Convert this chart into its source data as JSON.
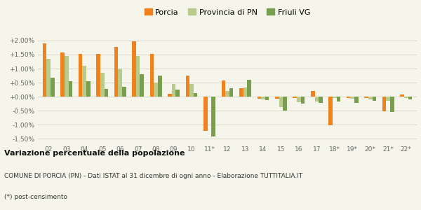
{
  "categories": [
    "02",
    "03",
    "04",
    "05",
    "06",
    "07",
    "08",
    "09",
    "10",
    "11*",
    "12",
    "13",
    "14",
    "15",
    "16",
    "17",
    "18*",
    "19*",
    "20*",
    "21*",
    "22*"
  ],
  "porcia": [
    1.9,
    1.58,
    1.53,
    1.52,
    1.77,
    1.97,
    1.53,
    0.1,
    0.75,
    -1.22,
    0.58,
    0.3,
    -0.07,
    -0.07,
    -0.06,
    0.2,
    -1.02,
    -0.04,
    -0.04,
    -0.52,
    0.08
  ],
  "provincia_pn": [
    1.36,
    1.44,
    1.1,
    0.85,
    1.0,
    1.46,
    0.5,
    0.45,
    0.45,
    -0.03,
    0.2,
    0.33,
    -0.09,
    -0.38,
    -0.2,
    -0.18,
    -0.05,
    -0.07,
    -0.09,
    -0.15,
    -0.05
  ],
  "friuli_vg": [
    0.68,
    0.56,
    0.54,
    0.28,
    0.35,
    0.8,
    0.74,
    0.26,
    0.13,
    -1.42,
    0.3,
    0.59,
    -0.12,
    -0.5,
    -0.25,
    -0.22,
    -0.18,
    -0.22,
    -0.15,
    -0.56,
    -0.1
  ],
  "color_porcia": "#f0821e",
  "color_provincia": "#b8cb8a",
  "color_friuli": "#7a9e50",
  "ylim": [
    -1.65,
    2.25
  ],
  "yticks": [
    -1.5,
    -1.0,
    -0.5,
    0.0,
    0.5,
    1.0,
    1.5,
    2.0
  ],
  "title_bold": "Variazione percentuale della popolazione",
  "subtitle": "COMUNE DI PORCIA (PN) - Dati ISTAT al 31 dicembre di ogni anno - Elaborazione TUTTITALIA.IT",
  "footnote": "(*) post-censimento",
  "bg_color": "#f5f5eb",
  "grid_color": "#d8d8c8"
}
